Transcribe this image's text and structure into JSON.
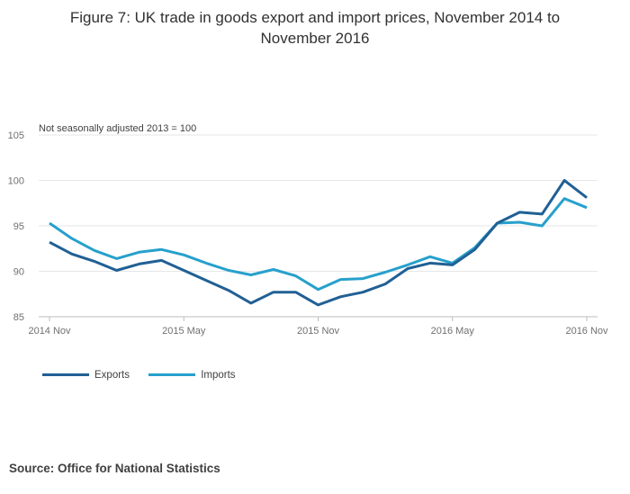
{
  "title_line1": "Figure 7: UK trade in goods export and import prices, November 2014 to",
  "title_line2": "November 2016",
  "source": "Source: Office for National Statistics",
  "chart_data": {
    "type": "line",
    "subtitle": "Not seasonally adjusted 2013 = 100",
    "x": [
      "2014 Nov",
      "2014 Dec",
      "2015 Jan",
      "2015 Feb",
      "2015 Mar",
      "2015 Apr",
      "2015 May",
      "2015 Jun",
      "2015 Jul",
      "2015 Aug",
      "2015 Sep",
      "2015 Oct",
      "2015 Nov",
      "2015 Dec",
      "2016 Jan",
      "2016 Feb",
      "2016 Mar",
      "2016 Apr",
      "2016 May",
      "2016 Jun",
      "2016 Jul",
      "2016 Aug",
      "2016 Sep",
      "2016 Oct",
      "2016 Nov"
    ],
    "x_tick_labels": [
      "2014 Nov",
      "2015 May",
      "2015 Nov",
      "2016 May",
      "2016 Nov"
    ],
    "y_ticks": [
      85,
      90,
      95,
      100,
      105
    ],
    "ylim": [
      85,
      105
    ],
    "grid": true,
    "legend_position": "bottom-left",
    "series": [
      {
        "name": "Exports",
        "color": "#206095",
        "values": [
          93.2,
          91.9,
          91.1,
          90.1,
          90.8,
          91.2,
          90.1,
          89.0,
          87.9,
          86.5,
          87.7,
          87.7,
          86.3,
          87.2,
          87.7,
          88.6,
          90.3,
          90.9,
          90.7,
          92.4,
          95.3,
          96.5,
          96.3,
          100.0,
          98.1
        ]
      },
      {
        "name": "Imports",
        "color": "#27a0cc",
        "values": [
          95.3,
          93.6,
          92.3,
          91.4,
          92.1,
          92.4,
          91.8,
          90.9,
          90.1,
          89.6,
          90.2,
          89.5,
          88.0,
          89.1,
          89.2,
          89.9,
          90.7,
          91.6,
          90.9,
          92.6,
          95.3,
          95.4,
          95.0,
          98.0,
          97.0
        ]
      }
    ]
  }
}
